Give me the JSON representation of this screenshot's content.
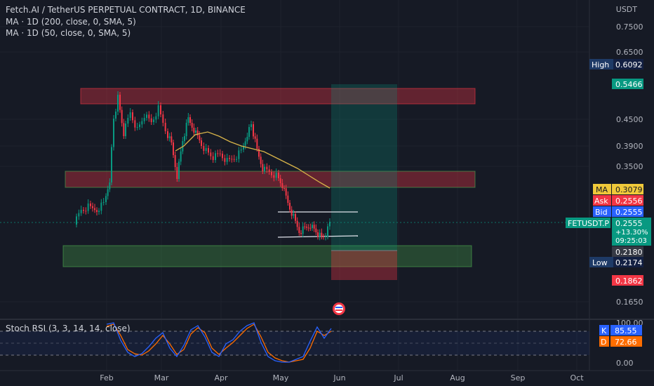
{
  "header": {
    "title": "Fetch.AI / TetherUS PERPETUAL CONTRACT, 1D, BINANCE",
    "ma200": "MA · 1D (200, close, 0, SMA, 5)",
    "ma50": "MA · 1D (50, close, 0, SMA, 5)"
  },
  "axis": {
    "unit": "USDT",
    "price_ticks": [
      "0.7500",
      "0.6500",
      "0.4500",
      "0.3900",
      "0.3500",
      "0.1650"
    ],
    "rsi_ticks": [
      "100.00",
      "0.00"
    ],
    "months": [
      "Feb",
      "Mar",
      "Apr",
      "May",
      "Jun",
      "Jul",
      "Aug",
      "Sep",
      "Oct"
    ]
  },
  "price_labels": {
    "high_label": "High",
    "high_value": "0.6092",
    "target": "0.5466",
    "ma_label": "MA",
    "ma_value": "0.3079",
    "ask_label": "Ask",
    "ask_value": "0.2556",
    "bid_label": "Bid",
    "bid_value": "0.2555",
    "symbol": "FETUSDT.P",
    "last": "0.2555",
    "change": "+13.30%",
    "countdown": "09:25:03",
    "entry": "0.2180",
    "low_label": "Low",
    "low_value": "0.2174",
    "stop": "0.1862"
  },
  "rsi": {
    "title": "Stoch RSI (3, 3, 14, 14, close)",
    "k_label": "K",
    "k_value": "85.55",
    "d_label": "D",
    "d_value": "72.66"
  },
  "colors": {
    "background": "#161a25",
    "up": "#089981",
    "down": "#f23645",
    "ma": "#d8b449",
    "k_line": "#2962ff",
    "d_line": "#ff6d00"
  }
}
